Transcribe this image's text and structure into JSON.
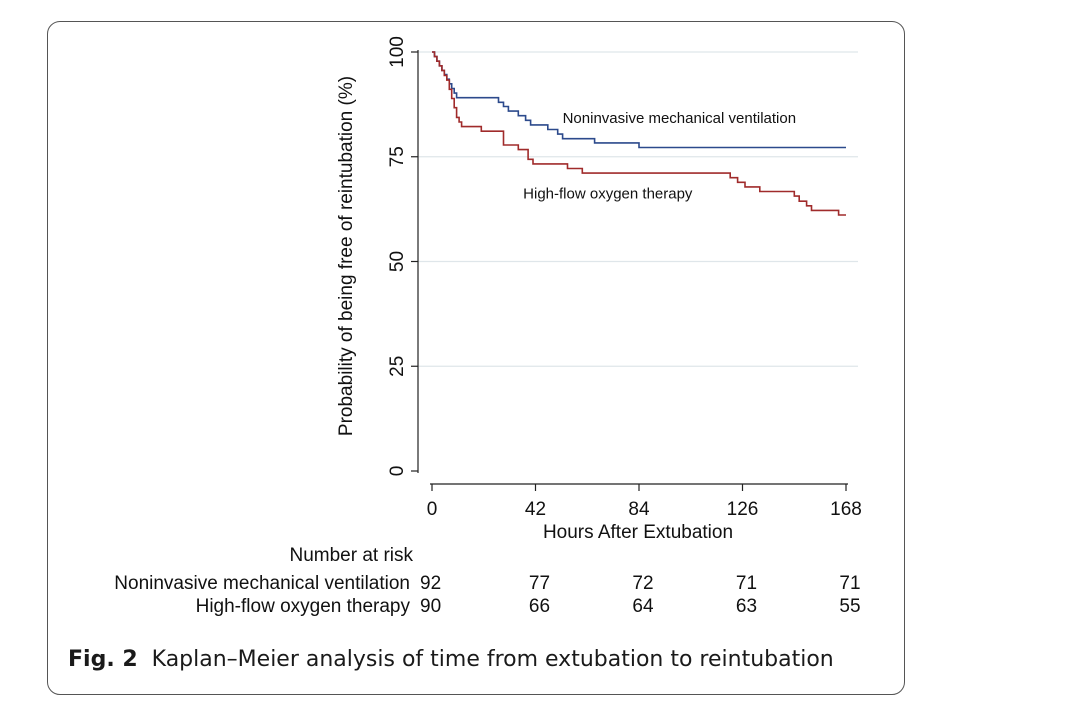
{
  "chart_data": {
    "type": "line",
    "step": true,
    "xlabel": "Hours After Extubation",
    "ylabel": "Probability of being free of reintubation (%)",
    "xlim": [
      0,
      168
    ],
    "ylim": [
      0,
      100
    ],
    "x_ticks": [
      0,
      42,
      84,
      126,
      168
    ],
    "y_ticks": [
      0,
      25,
      50,
      75,
      100
    ],
    "grid": "horizontal",
    "series": [
      {
        "name": "Noninvasive mechanical ventilation",
        "color": "#2c4a8c",
        "x": [
          0,
          1,
          2,
          3,
          4,
          5,
          6,
          7,
          8,
          9,
          10,
          14,
          27,
          29,
          31,
          35,
          38,
          40,
          43,
          47,
          51,
          53,
          61,
          66,
          84,
          168
        ],
        "y": [
          100,
          98.9,
          97.8,
          96.7,
          95.6,
          94.6,
          93.5,
          92.4,
          91.3,
          90.2,
          89.1,
          89.1,
          88.0,
          87.0,
          85.9,
          84.8,
          83.7,
          82.6,
          82.6,
          81.5,
          80.4,
          79.3,
          79.3,
          78.3,
          77.2,
          77.2
        ]
      },
      {
        "name": "High-flow oxygen therapy",
        "color": "#a02b2b",
        "x": [
          0,
          1,
          2,
          3,
          4,
          5,
          6,
          7,
          8,
          9,
          10,
          11,
          12,
          13,
          20,
          27,
          29,
          35,
          39,
          41,
          48,
          55,
          57,
          61,
          64,
          120,
          121,
          124,
          126,
          127,
          129,
          133,
          134,
          138,
          142,
          147,
          149,
          152,
          154,
          162,
          165,
          168
        ],
        "y": [
          100,
          98.9,
          97.8,
          96.7,
          95.6,
          94.4,
          93.3,
          91.1,
          88.9,
          86.7,
          84.4,
          83.3,
          82.2,
          82.2,
          81.1,
          81.1,
          77.8,
          76.7,
          74.4,
          73.3,
          73.3,
          72.2,
          72.2,
          71.1,
          71.1,
          71.1,
          70.0,
          68.9,
          68.9,
          67.8,
          67.8,
          66.7,
          66.7,
          66.7,
          66.7,
          65.6,
          64.4,
          63.3,
          62.2,
          62.2,
          61.1,
          61.1
        ]
      }
    ],
    "annotations": [
      {
        "text": "Noninvasive mechanical ventilation",
        "x": 53,
        "y": 83
      },
      {
        "text": "High-flow oxygen therapy",
        "x": 37,
        "y": 65
      }
    ],
    "risk_table": {
      "title": "Number at risk",
      "time_points": [
        0,
        42,
        84,
        126,
        168
      ],
      "rows": [
        {
          "label": "Noninvasive mechanical ventilation",
          "values": [
            92,
            77,
            72,
            71,
            71
          ]
        },
        {
          "label": "High-flow oxygen therapy",
          "values": [
            90,
            66,
            64,
            63,
            55
          ]
        }
      ]
    }
  },
  "caption": {
    "label": "Fig. 2",
    "text": "Kaplan–Meier analysis of time from extubation to reintubation"
  }
}
